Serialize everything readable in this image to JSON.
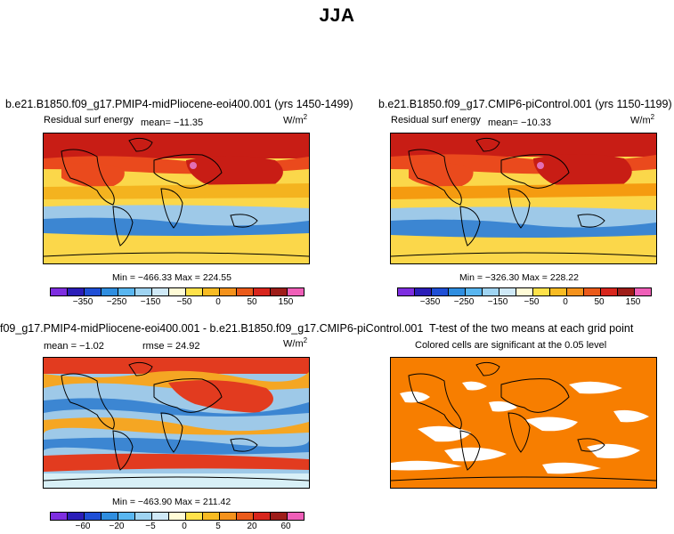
{
  "figure": {
    "title": "JJA"
  },
  "colors": {
    "fill_a": [
      "#fbd74a",
      "#f4b31f",
      "#f59b10",
      "#ea4a1d",
      "#c81d15",
      "#e26fb5"
    ],
    "fill_b": [
      "#fbd74a",
      "#f4b31f",
      "#f59b10",
      "#ea4a1d",
      "#c81d15",
      "#e26fb5"
    ],
    "fill_c": [
      "#9ec9e8",
      "#3c86d2",
      "#f7e7a0",
      "#f5a623",
      "#e23b1f",
      "#d8f0f7"
    ],
    "ttest": "#f77e00",
    "colorbar_main": [
      "#7e2ee0",
      "#2b1eb8",
      "#1f4fd6",
      "#2f8ee0",
      "#59b6f0",
      "#9fd4f2",
      "#cfe9f7",
      "#fffbd6",
      "#ffe24a",
      "#f8bb22",
      "#f4921c",
      "#ea5a1a",
      "#d8261d",
      "#9e1d19",
      "#ef5fb8"
    ],
    "colorbar_diff": [
      "#7e2ee0",
      "#2b1eb8",
      "#1f4fd6",
      "#2f8ee0",
      "#59b6f0",
      "#9fd4f2",
      "#cfe9f7",
      "#fffbd6",
      "#ffe24a",
      "#f8bb22",
      "#f4921c",
      "#ea5a1a",
      "#d8261d",
      "#9e1d19",
      "#ef5fb8"
    ]
  },
  "chart_data": [
    {
      "type": "heatmap",
      "title": "b.e21.B1850.f09_g17.PMIP4-midPliocene-eoi400.001 (yrs 1450-1499)",
      "subtitle": "Residual surf energy",
      "mean_text": "mean= −11.35",
      "units": "W/m",
      "units_exp": "2",
      "minmax_text": "Min = −466.33 Max = 224.55",
      "colorbar_ticks": [
        "−350",
        "−250",
        "−150",
        "−50",
        "0",
        "50",
        "150"
      ]
    },
    {
      "type": "heatmap",
      "title": "b.e21.B1850.f09_g17.CMIP6-piControl.001 (yrs 1150-1199)",
      "subtitle": "Residual surf energy",
      "mean_text": "mean= −10.33",
      "units": "W/m",
      "units_exp": "2",
      "minmax_text": "Min = −326.30 Max = 228.22",
      "colorbar_ticks": [
        "−350",
        "−250",
        "−150",
        "−50",
        "0",
        "50",
        "150"
      ]
    },
    {
      "type": "heatmap",
      "title": "f09_g17.PMIP4-midPliocene-eoi400.001 - b.e21.B1850.f09_g17.CMIP6-piControl.001",
      "mean_text": "mean =   −1.02",
      "rmse_text": "rmse =   24.92",
      "units": "W/m",
      "units_exp": "2",
      "minmax_text": "Min = −463.90 Max = 211.42",
      "colorbar_ticks": [
        "−60",
        "−20",
        "−5",
        "0",
        "5",
        "20",
        "60"
      ]
    },
    {
      "type": "heatmap",
      "title": "T-test of the two means at each grid point",
      "subtitle": "Colored cells are significant at the 0.05 level"
    }
  ]
}
